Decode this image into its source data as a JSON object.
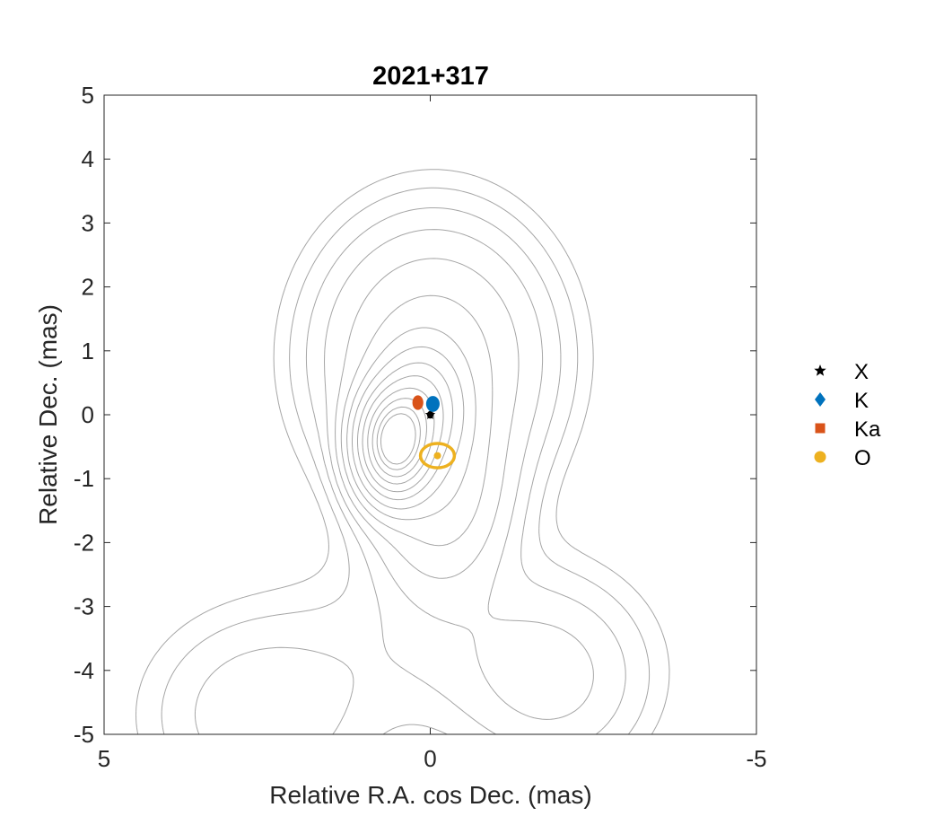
{
  "chart_data": {
    "type": "scatter",
    "title": "2021+317",
    "xlabel": "Relative R.A. cos Dec. (mas)",
    "ylabel": "Relative Dec. (mas)",
    "xlim": [
      5,
      -5
    ],
    "ylim": [
      -5,
      5
    ],
    "x_reversed": true,
    "x_ticks": [
      5,
      0,
      -5
    ],
    "y_ticks": [
      5,
      4,
      3,
      2,
      1,
      0,
      -1,
      -2,
      -3,
      -4,
      -5
    ],
    "x_tick_labels": [
      "5",
      "0",
      "-5"
    ],
    "y_tick_labels": [
      "5",
      "4",
      "3",
      "2",
      "1",
      "0",
      "-1",
      "-2",
      "-3",
      "-4",
      "-5"
    ],
    "grid": false,
    "legend_position": "right-outside",
    "series": [
      {
        "name": "X",
        "marker": "star",
        "color": "#000000",
        "x": [
          0.0
        ],
        "y": [
          0.0
        ],
        "ex": [
          0.05
        ],
        "ey": [
          0.06
        ]
      },
      {
        "name": "K",
        "marker": "diamond",
        "color": "#0072BD",
        "x": [
          -0.04
        ],
        "y": [
          0.17
        ],
        "ex": [
          0.09
        ],
        "ey": [
          0.11
        ]
      },
      {
        "name": "Ka",
        "marker": "square",
        "color": "#D95319",
        "x": [
          0.19
        ],
        "y": [
          0.19
        ],
        "ex": [
          0.07
        ],
        "ey": [
          0.1
        ]
      },
      {
        "name": "O",
        "marker": "circle",
        "color": "#EDB120",
        "x": [
          -0.11
        ],
        "y": [
          -0.64
        ],
        "ex": [
          0.26
        ],
        "ey": [
          0.19
        ]
      }
    ],
    "contours": {
      "color": "#a6a6a6",
      "sources": [
        {
          "x": 0.55,
          "y": -0.45,
          "sx": 0.32,
          "sy": 0.48,
          "amp": 1.0
        },
        {
          "x": 0.15,
          "y": 0.1,
          "sx": 0.38,
          "sy": 0.55,
          "amp": 0.35
        },
        {
          "x": -0.05,
          "y": 0.9,
          "sx": 1.0,
          "sy": 1.2,
          "amp": 0.08
        },
        {
          "x": -0.15,
          "y": -1.2,
          "sx": 0.6,
          "sy": 0.9,
          "amp": 0.08
        },
        {
          "x": 2.6,
          "y": -4.7,
          "sx": 1.1,
          "sy": 1.0,
          "amp": 0.018
        },
        {
          "x": -1.9,
          "y": -4.2,
          "sx": 0.9,
          "sy": 0.9,
          "amp": 0.02
        },
        {
          "x": -0.5,
          "y": -3.5,
          "sx": 1.5,
          "sy": 1.0,
          "amp": 0.012
        }
      ],
      "levels": [
        0.004,
        0.007,
        0.012,
        0.02,
        0.035,
        0.06,
        0.1,
        0.16,
        0.25,
        0.36,
        0.5,
        0.65,
        0.8,
        0.92
      ]
    }
  }
}
